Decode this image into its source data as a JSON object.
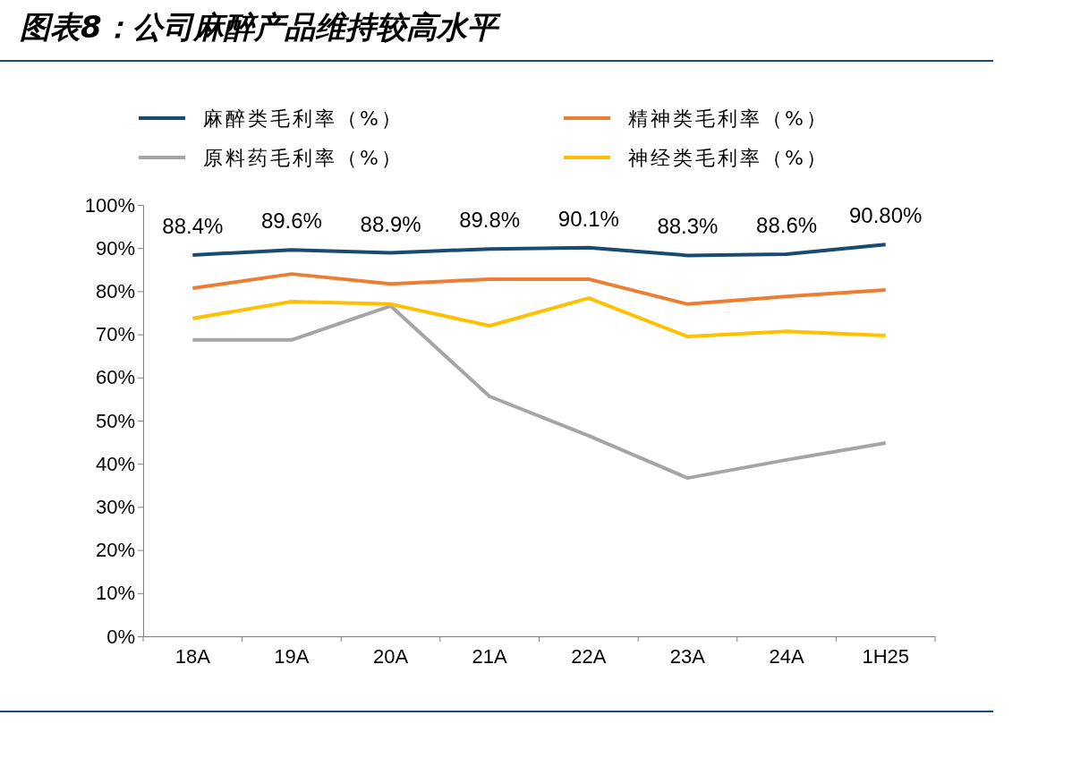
{
  "chart_data": {
    "type": "line",
    "title": "图表8：公司麻醉产品维持较高水平",
    "categories": [
      "18A",
      "19A",
      "20A",
      "21A",
      "22A",
      "23A",
      "24A",
      "1H25"
    ],
    "series": [
      {
        "name": "麻醉类毛利率（%）",
        "color": "#1a4a72",
        "values": [
          88.4,
          89.6,
          88.9,
          89.8,
          90.1,
          88.3,
          88.6,
          90.8
        ],
        "value_labels": [
          "88.4%",
          "89.6%",
          "88.9%",
          "89.8%",
          "90.1%",
          "88.3%",
          "88.6%",
          "90.80%"
        ]
      },
      {
        "name": "精神类毛利率（%）",
        "color": "#ed7d31",
        "values": [
          80.7,
          84.0,
          81.7,
          82.8,
          82.8,
          77.0,
          78.8,
          80.3
        ]
      },
      {
        "name": "原料药毛利率（%）",
        "color": "#a5a5a5",
        "values": [
          68.7,
          68.7,
          76.6,
          55.6,
          46.5,
          36.7,
          40.9,
          44.8
        ]
      },
      {
        "name": "神经类毛利率（%）",
        "color": "#ffc000",
        "values": [
          73.7,
          77.6,
          77.0,
          72.0,
          78.4,
          69.5,
          70.7,
          69.7
        ]
      }
    ],
    "ylim": [
      0,
      100
    ],
    "yticks": [
      {
        "value": 0,
        "label": "0%"
      },
      {
        "value": 10,
        "label": "10%"
      },
      {
        "value": 20,
        "label": "20%"
      },
      {
        "value": 30,
        "label": "30%"
      },
      {
        "value": 40,
        "label": "40%"
      },
      {
        "value": 50,
        "label": "50%"
      },
      {
        "value": 60,
        "label": "60%"
      },
      {
        "value": 70,
        "label": "70%"
      },
      {
        "value": 80,
        "label": "80%"
      },
      {
        "value": 90,
        "label": "90%"
      },
      {
        "value": 100,
        "label": "100%"
      }
    ],
    "grid": false,
    "legend": "top",
    "marker": "none",
    "line_style": "solid"
  }
}
